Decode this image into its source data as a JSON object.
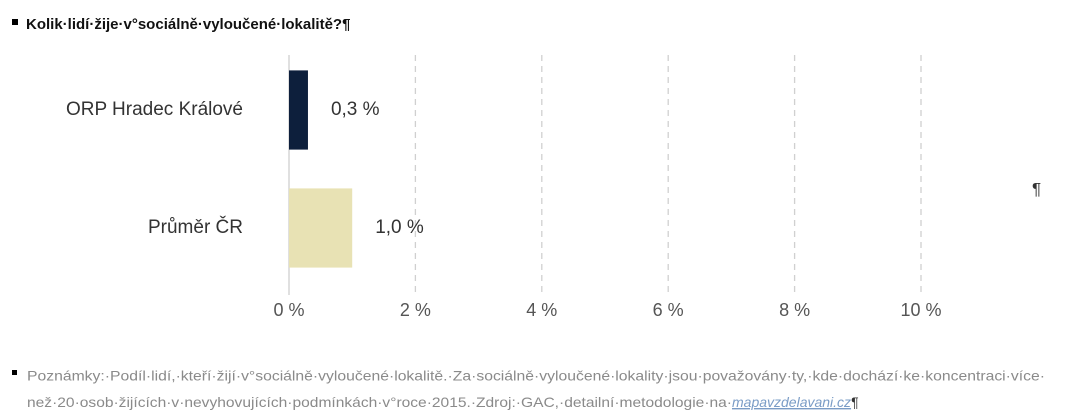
{
  "heading": "Kolik·lidí·žije·v°sociálně·vyloučené·lokalitě?¶",
  "chart_data": {
    "type": "hbar",
    "categories": [
      "ORP Hradec Králové",
      "Průměr ČR"
    ],
    "values": [
      0.3,
      1.0
    ],
    "value_labels": [
      "0,3 %",
      "1,0 %"
    ],
    "colors": [
      "#0d1f3c",
      "#e8e2b4"
    ],
    "xlim": [
      0,
      10
    ],
    "xticks": [
      {
        "value": 0,
        "label": "0 %"
      },
      {
        "value": 2,
        "label": "2 %"
      },
      {
        "value": 4,
        "label": "4 %"
      },
      {
        "value": 6,
        "label": "6 %"
      },
      {
        "value": 8,
        "label": "8 %"
      },
      {
        "value": 10,
        "label": "10 %"
      }
    ],
    "grid": true
  },
  "chart_mark": "¶",
  "note": {
    "line1": "Poznámky:·Podíl·lidí,·kteří·žijí·v°sociálně·vyloučené·lokalitě.·Za·sociálně·vyloučené·lokality·jsou·považovány·ty,·kde·dochází·ke·koncentraci·více·",
    "line2": "než·20·osob·žijících·v·nevyhovujících·podmínkách·v°roce·2015.·Zdroj:·GAC,·detailní·metodologie·na·",
    "link": "mapavzdelavani.cz",
    "end": "¶"
  }
}
